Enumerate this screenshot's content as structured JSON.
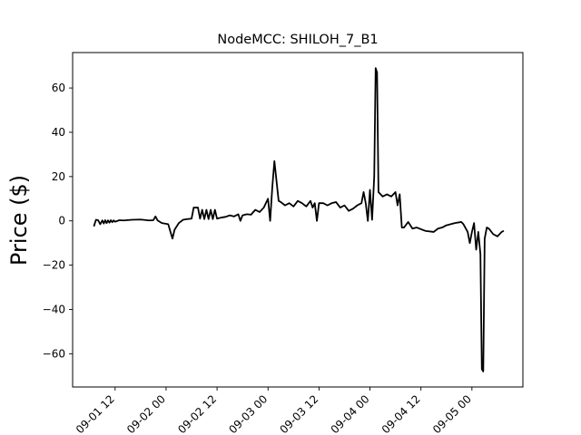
{
  "chart_data": {
    "type": "line",
    "title": "NodeMCC: SHILOH_7_B1",
    "xlabel": "",
    "ylabel": "Price ($)",
    "xlim": [
      "2020-09-01 02:00",
      "2020-09-05 12:00"
    ],
    "ylim": [
      -75,
      76
    ],
    "x_ticks": [
      {
        "x": "2020-09-01 12:00",
        "label": "09-01 12"
      },
      {
        "x": "2020-09-02 00:00",
        "label": "09-02 00"
      },
      {
        "x": "2020-09-02 12:00",
        "label": "09-02 12"
      },
      {
        "x": "2020-09-03 00:00",
        "label": "09-03 00"
      },
      {
        "x": "2020-09-03 12:00",
        "label": "09-03 12"
      },
      {
        "x": "2020-09-04 00:00",
        "label": "09-04 00"
      },
      {
        "x": "2020-09-04 12:00",
        "label": "09-04 12"
      },
      {
        "x": "2020-09-05 00:00",
        "label": "09-05 00"
      }
    ],
    "y_ticks": [
      60,
      40,
      20,
      0,
      -20,
      -40,
      -60
    ],
    "y_tick_labels": [
      "60",
      "40",
      "20",
      "0",
      "−20",
      "−40",
      "−60"
    ],
    "grid": false,
    "series": [
      {
        "color": "#000000",
        "points": [
          [
            "2020-09-01 07:00",
            -2.5
          ],
          [
            "2020-09-01 07:30",
            0.5
          ],
          [
            "2020-09-01 08:00",
            0.3
          ],
          [
            "2020-09-01 08:30",
            -1.5
          ],
          [
            "2020-09-01 09:00",
            0.2
          ],
          [
            "2020-09-01 09:20",
            -1.2
          ],
          [
            "2020-09-01 09:40",
            0.3
          ],
          [
            "2020-09-01 10:00",
            -1.0
          ],
          [
            "2020-09-01 10:20",
            0.2
          ],
          [
            "2020-09-01 10:40",
            -0.8
          ],
          [
            "2020-09-01 11:00",
            0.3
          ],
          [
            "2020-09-01 11:20",
            -0.6
          ],
          [
            "2020-09-01 11:40",
            0.2
          ],
          [
            "2020-09-01 12:00",
            -0.4
          ],
          [
            "2020-09-01 13:00",
            0.3
          ],
          [
            "2020-09-01 14:00",
            0.2
          ],
          [
            "2020-09-01 16:00",
            0.5
          ],
          [
            "2020-09-01 18:00",
            0.6
          ],
          [
            "2020-09-01 20:00",
            0.2
          ],
          [
            "2020-09-01 21:00",
            0.3
          ],
          [
            "2020-09-01 21:30",
            2.0
          ],
          [
            "2020-09-01 22:00",
            0.2
          ],
          [
            "2020-09-01 23:00",
            -1.0
          ],
          [
            "2020-09-02 00:30",
            -1.5
          ],
          [
            "2020-09-02 01:30",
            -8.0
          ],
          [
            "2020-09-02 02:00",
            -4.0
          ],
          [
            "2020-09-02 03:00",
            -1.0
          ],
          [
            "2020-09-02 04:00",
            0.5
          ],
          [
            "2020-09-02 05:00",
            0.8
          ],
          [
            "2020-09-02 06:00",
            1.0
          ],
          [
            "2020-09-02 06:30",
            6.0
          ],
          [
            "2020-09-02 07:30",
            6.0
          ],
          [
            "2020-09-02 08:00",
            1.0
          ],
          [
            "2020-09-02 08:30",
            5.0
          ],
          [
            "2020-09-02 09:00",
            0.8
          ],
          [
            "2020-09-02 09:30",
            5.0
          ],
          [
            "2020-09-02 10:00",
            0.8
          ],
          [
            "2020-09-02 10:30",
            5.0
          ],
          [
            "2020-09-02 11:00",
            0.8
          ],
          [
            "2020-09-02 11:30",
            5.0
          ],
          [
            "2020-09-02 12:00",
            1.0
          ],
          [
            "2020-09-02 13:00",
            1.5
          ],
          [
            "2020-09-02 14:00",
            1.8
          ],
          [
            "2020-09-02 15:00",
            2.5
          ],
          [
            "2020-09-02 16:00",
            2.0
          ],
          [
            "2020-09-02 17:00",
            3.0
          ],
          [
            "2020-09-02 17:30",
            0.0
          ],
          [
            "2020-09-02 18:00",
            2.5
          ],
          [
            "2020-09-02 19:00",
            3.0
          ],
          [
            "2020-09-02 20:00",
            2.8
          ],
          [
            "2020-09-02 21:00",
            5.0
          ],
          [
            "2020-09-02 22:00",
            4.0
          ],
          [
            "2020-09-02 23:00",
            6.0
          ],
          [
            "2020-09-03 00:00",
            10.0
          ],
          [
            "2020-09-03 00:30",
            0.0
          ],
          [
            "2020-09-03 01:00",
            15.0
          ],
          [
            "2020-09-03 01:30",
            27.0
          ],
          [
            "2020-09-03 02:00",
            18.0
          ],
          [
            "2020-09-03 02:30",
            9.0
          ],
          [
            "2020-09-03 03:00",
            8.5
          ],
          [
            "2020-09-03 04:00",
            7.0
          ],
          [
            "2020-09-03 05:00",
            8.0
          ],
          [
            "2020-09-03 06:00",
            6.5
          ],
          [
            "2020-09-03 07:00",
            9.0
          ],
          [
            "2020-09-03 08:00",
            8.0
          ],
          [
            "2020-09-03 09:00",
            6.5
          ],
          [
            "2020-09-03 10:00",
            9.0
          ],
          [
            "2020-09-03 10:30",
            6.0
          ],
          [
            "2020-09-03 11:00",
            8.0
          ],
          [
            "2020-09-03 11:30",
            0.0
          ],
          [
            "2020-09-03 12:00",
            8.0
          ],
          [
            "2020-09-03 13:00",
            8.0
          ],
          [
            "2020-09-03 14:00",
            7.0
          ],
          [
            "2020-09-03 15:00",
            8.0
          ],
          [
            "2020-09-03 16:00",
            8.5
          ],
          [
            "2020-09-03 17:00",
            6.0
          ],
          [
            "2020-09-03 18:00",
            7.0
          ],
          [
            "2020-09-03 19:00",
            4.5
          ],
          [
            "2020-09-03 20:00",
            5.5
          ],
          [
            "2020-09-03 21:00",
            7.0
          ],
          [
            "2020-09-03 22:00",
            8.0
          ],
          [
            "2020-09-03 22:30",
            13.0
          ],
          [
            "2020-09-03 23:00",
            8.0
          ],
          [
            "2020-09-03 23:30",
            0.0
          ],
          [
            "2020-09-04 00:00",
            14.0
          ],
          [
            "2020-09-04 00:30",
            0.5
          ],
          [
            "2020-09-04 01:00",
            20.0
          ],
          [
            "2020-09-04 01:20",
            69.0
          ],
          [
            "2020-09-04 01:40",
            67.0
          ],
          [
            "2020-09-04 02:00",
            13.0
          ],
          [
            "2020-09-04 03:00",
            11.0
          ],
          [
            "2020-09-04 04:00",
            12.0
          ],
          [
            "2020-09-04 05:00",
            11.0
          ],
          [
            "2020-09-04 06:00",
            13.0
          ],
          [
            "2020-09-04 06:30",
            7.0
          ],
          [
            "2020-09-04 07:00",
            12.0
          ],
          [
            "2020-09-04 07:30",
            -3.0
          ],
          [
            "2020-09-04 08:00",
            -3.0
          ],
          [
            "2020-09-04 09:00",
            -0.5
          ],
          [
            "2020-09-04 10:00",
            -3.5
          ],
          [
            "2020-09-04 11:00",
            -3.0
          ],
          [
            "2020-09-04 13:00",
            -4.5
          ],
          [
            "2020-09-04 15:00",
            -5.0
          ],
          [
            "2020-09-04 16:00",
            -3.5
          ],
          [
            "2020-09-04 17:00",
            -3.0
          ],
          [
            "2020-09-04 18:00",
            -2.0
          ],
          [
            "2020-09-04 20:00",
            -1.0
          ],
          [
            "2020-09-04 21:30",
            -0.5
          ],
          [
            "2020-09-04 22:00",
            -1.5
          ],
          [
            "2020-09-04 23:00",
            -5.0
          ],
          [
            "2020-09-04 23:30",
            -10.0
          ],
          [
            "2020-09-05 00:00",
            -5.0
          ],
          [
            "2020-09-05 00:30",
            -1.0
          ],
          [
            "2020-09-05 01:00",
            -13.0
          ],
          [
            "2020-09-05 01:30",
            -5.0
          ],
          [
            "2020-09-05 02:00",
            -15.0
          ],
          [
            "2020-09-05 02:20",
            -67.0
          ],
          [
            "2020-09-05 02:40",
            -68.0
          ],
          [
            "2020-09-05 03:00",
            -8.0
          ],
          [
            "2020-09-05 03:30",
            -3.0
          ],
          [
            "2020-09-05 04:00",
            -3.5
          ],
          [
            "2020-09-05 05:00",
            -6.0
          ],
          [
            "2020-09-05 06:00",
            -7.0
          ],
          [
            "2020-09-05 07:00",
            -5.0
          ],
          [
            "2020-09-05 07:30",
            -4.5
          ]
        ]
      }
    ]
  }
}
